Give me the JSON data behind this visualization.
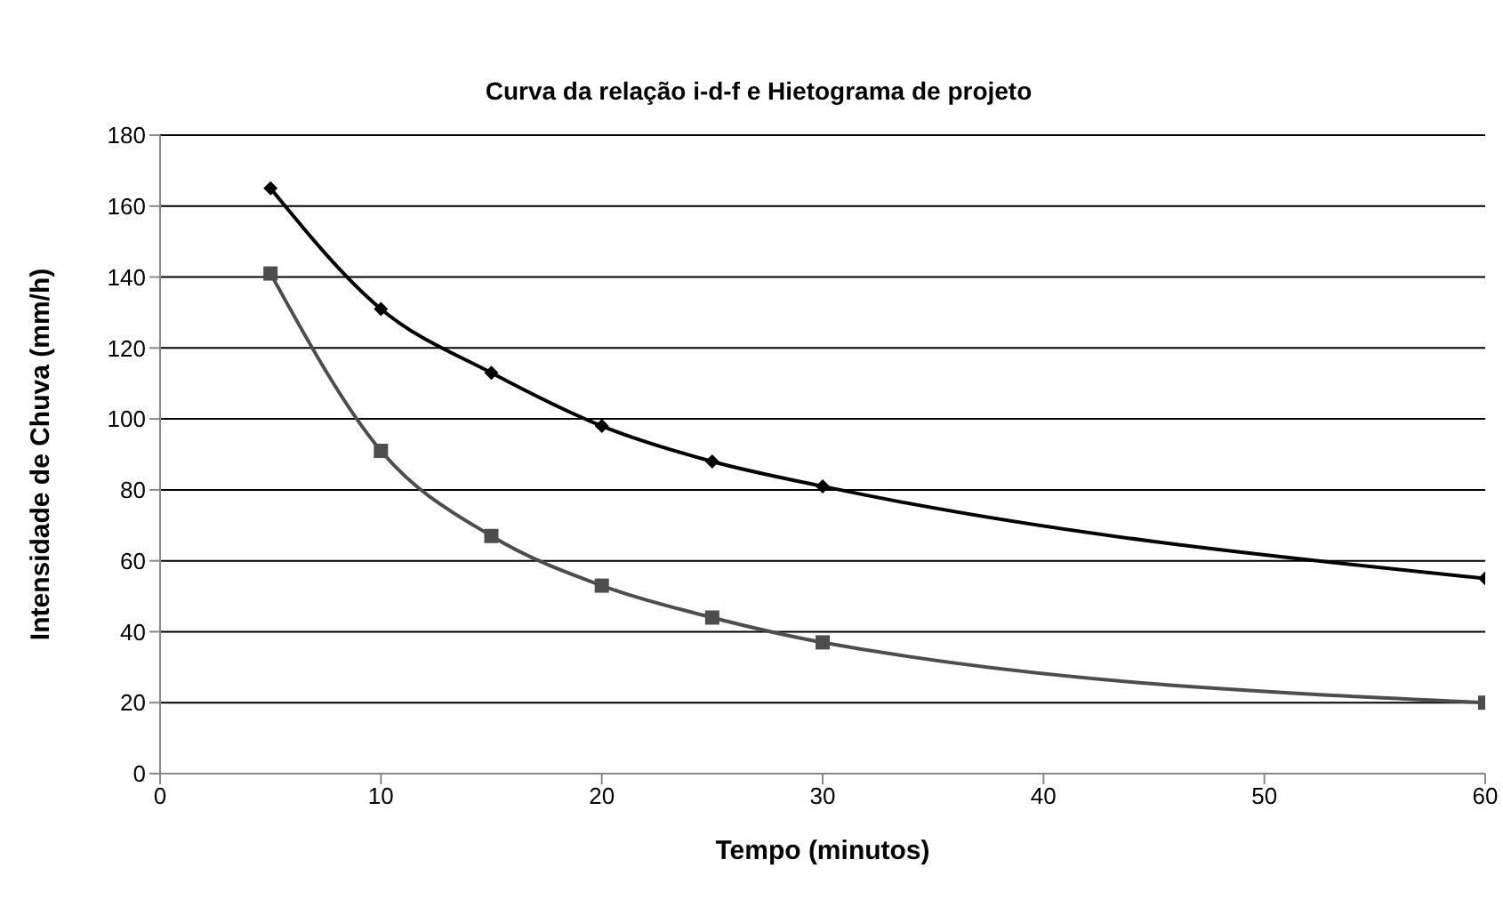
{
  "chart_data": {
    "type": "line",
    "title": "Curva da relação i-d-f e Hietograma de projeto",
    "xlabel": "Tempo (minutos)",
    "ylabel": "Intensidade de Chuva (mm/h)",
    "x": [
      5,
      10,
      15,
      20,
      25,
      30,
      60
    ],
    "series": [
      {
        "color": "#000000",
        "marker": "diamond",
        "values": [
          165,
          131,
          113,
          98,
          88,
          81,
          55
        ]
      },
      {
        "color": "#4d4d4d",
        "marker": "square",
        "values": [
          141,
          91,
          67,
          53,
          44,
          37,
          20
        ]
      }
    ],
    "xlim": [
      0,
      60
    ],
    "xticks": [
      0,
      10,
      20,
      30,
      40,
      50,
      60
    ],
    "ylim": [
      0,
      180
    ],
    "yticks": [
      0,
      20,
      40,
      60,
      80,
      100,
      120,
      140,
      160,
      180
    ],
    "grid": "y",
    "legend": false,
    "line_style": "solid"
  }
}
